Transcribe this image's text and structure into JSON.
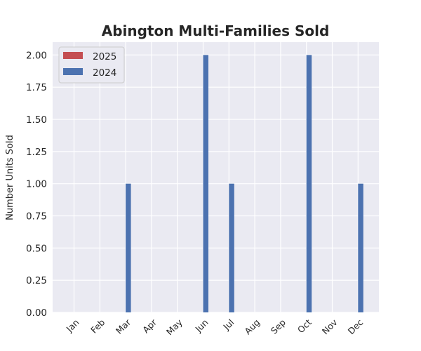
{
  "chart_data": {
    "type": "bar",
    "title": "Abington Multi-Families Sold",
    "xlabel": "",
    "ylabel": "Number Units Sold",
    "categories": [
      "Jan",
      "Feb",
      "Mar",
      "Apr",
      "May",
      "Jun",
      "Jul",
      "Aug",
      "Sep",
      "Oct",
      "Nov",
      "Dec"
    ],
    "series": [
      {
        "name": "2025",
        "values": [
          0,
          0,
          0,
          0,
          0,
          0,
          0,
          0,
          0,
          0,
          0,
          0
        ],
        "color": "#c44e52"
      },
      {
        "name": "2024",
        "values": [
          0,
          0,
          1,
          0,
          0,
          2,
          1,
          0,
          0,
          2,
          0,
          1
        ],
        "color": "#4c72b0"
      }
    ],
    "ylim": [
      0,
      2.1
    ],
    "yticks": [
      "0.00",
      "0.25",
      "0.50",
      "0.75",
      "1.00",
      "1.25",
      "1.50",
      "1.75",
      "2.00"
    ],
    "grid": true,
    "legend_position": "top-left",
    "background": "#eaeaf2"
  }
}
